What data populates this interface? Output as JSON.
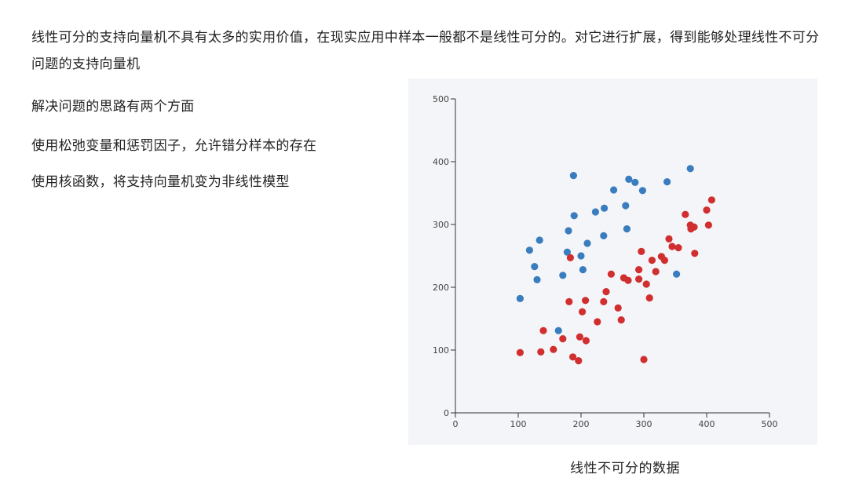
{
  "text": {
    "paragraph": "线性可分的支持向量机不具有太多的实用价值，在现实应用中样本一般都不是线性可分的。对它进行扩展，得到能够处理线性不可分问题的支持向量机",
    "line1": "解决问题的思路有两个方面",
    "line2": "使用松弛变量和惩罚因子，允许错分样本的存在",
    "line3": "使用核函数，将支持向量机变为非线性模型",
    "caption": "线性不可分的数据"
  },
  "colors": {
    "blue": "#3a7dbf",
    "red": "#d12f2f",
    "panel": "#f4f5f8",
    "axis": "#333333"
  },
  "chart_data": {
    "type": "scatter",
    "title": "",
    "xlabel": "",
    "ylabel": "",
    "xlim": [
      0,
      500
    ],
    "ylim": [
      0,
      500
    ],
    "x_ticks": [
      "0",
      "100",
      "200",
      "300",
      "400",
      "500"
    ],
    "y_ticks": [
      "0",
      "100",
      "200",
      "300",
      "400",
      "500"
    ],
    "grid": false,
    "series": [
      {
        "color": "#3a7dbf",
        "points": [
          [
            103,
            182
          ],
          [
            118,
            259
          ],
          [
            126,
            233
          ],
          [
            130,
            212
          ],
          [
            134,
            275
          ],
          [
            164,
            131
          ],
          [
            171,
            219
          ],
          [
            178,
            256
          ],
          [
            180,
            290
          ],
          [
            188,
            378
          ],
          [
            189,
            314
          ],
          [
            200,
            250
          ],
          [
            203,
            228
          ],
          [
            210,
            270
          ],
          [
            223,
            320
          ],
          [
            236,
            282
          ],
          [
            237,
            326
          ],
          [
            252,
            355
          ],
          [
            273,
            293
          ],
          [
            271,
            330
          ],
          [
            276,
            372
          ],
          [
            286,
            367
          ],
          [
            298,
            354
          ],
          [
            337,
            368
          ],
          [
            352,
            221
          ],
          [
            374,
            389
          ]
        ]
      },
      {
        "color": "#d12f2f",
        "points": [
          [
            103,
            96
          ],
          [
            136,
            97
          ],
          [
            140,
            131
          ],
          [
            156,
            101
          ],
          [
            171,
            118
          ],
          [
            181,
            177
          ],
          [
            183,
            247
          ],
          [
            187,
            89
          ],
          [
            196,
            83
          ],
          [
            198,
            121
          ],
          [
            202,
            161
          ],
          [
            207,
            179
          ],
          [
            208,
            115
          ],
          [
            226,
            145
          ],
          [
            236,
            177
          ],
          [
            240,
            193
          ],
          [
            248,
            221
          ],
          [
            259,
            167
          ],
          [
            264,
            148
          ],
          [
            268,
            215
          ],
          [
            275,
            211
          ],
          [
            292,
            228
          ],
          [
            292,
            213
          ],
          [
            296,
            257
          ],
          [
            300,
            85
          ],
          [
            304,
            205
          ],
          [
            309,
            183
          ],
          [
            313,
            243
          ],
          [
            319,
            225
          ],
          [
            328,
            249
          ],
          [
            333,
            243
          ],
          [
            340,
            277
          ],
          [
            345,
            265
          ],
          [
            355,
            263
          ],
          [
            366,
            316
          ],
          [
            374,
            299
          ],
          [
            375,
            293
          ],
          [
            380,
            296
          ],
          [
            381,
            254
          ],
          [
            400,
            323
          ],
          [
            403,
            299
          ],
          [
            408,
            339
          ]
        ]
      }
    ]
  }
}
